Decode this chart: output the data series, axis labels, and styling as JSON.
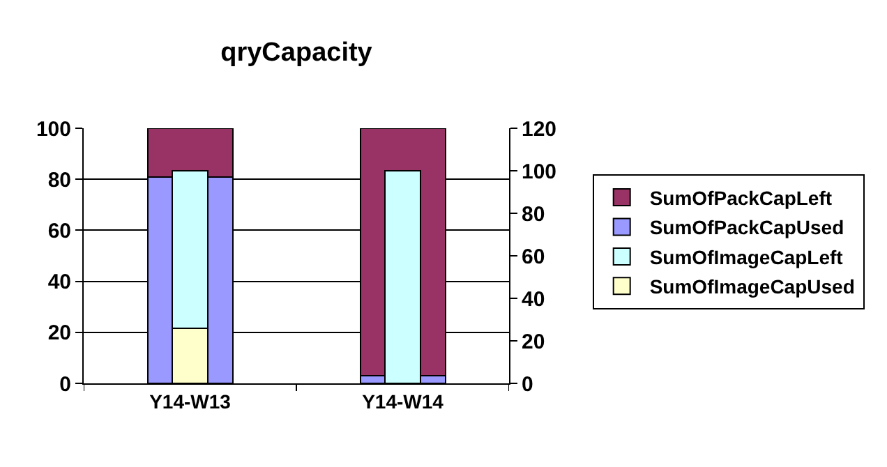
{
  "chart_data": {
    "type": "bar",
    "title": "qryCapacity",
    "categories": [
      "Y14-W13",
      "Y14-W14"
    ],
    "stacked": true,
    "series": [
      {
        "name": "SumOfPackCapUsed",
        "color": "#9999ff",
        "values": [
          81,
          3
        ]
      },
      {
        "name": "SumOfPackCapLeft",
        "color": "#993366",
        "values": [
          19,
          97
        ]
      },
      {
        "name": "SumOfImageCapUsed",
        "color": "#ffffcc",
        "values": [
          26,
          0
        ],
        "axis": "y2"
      },
      {
        "name": "SumOfImageCapLeft",
        "color": "#ccffff",
        "values": [
          74,
          100
        ],
        "axis": "y2"
      }
    ],
    "ylim": [
      0,
      100
    ],
    "yticks": [
      0,
      20,
      40,
      60,
      80,
      100
    ],
    "y2lim": [
      0,
      120
    ],
    "y2ticks": [
      0,
      20,
      40,
      60,
      80,
      100,
      120
    ],
    "grid": "y",
    "legend": "right"
  }
}
